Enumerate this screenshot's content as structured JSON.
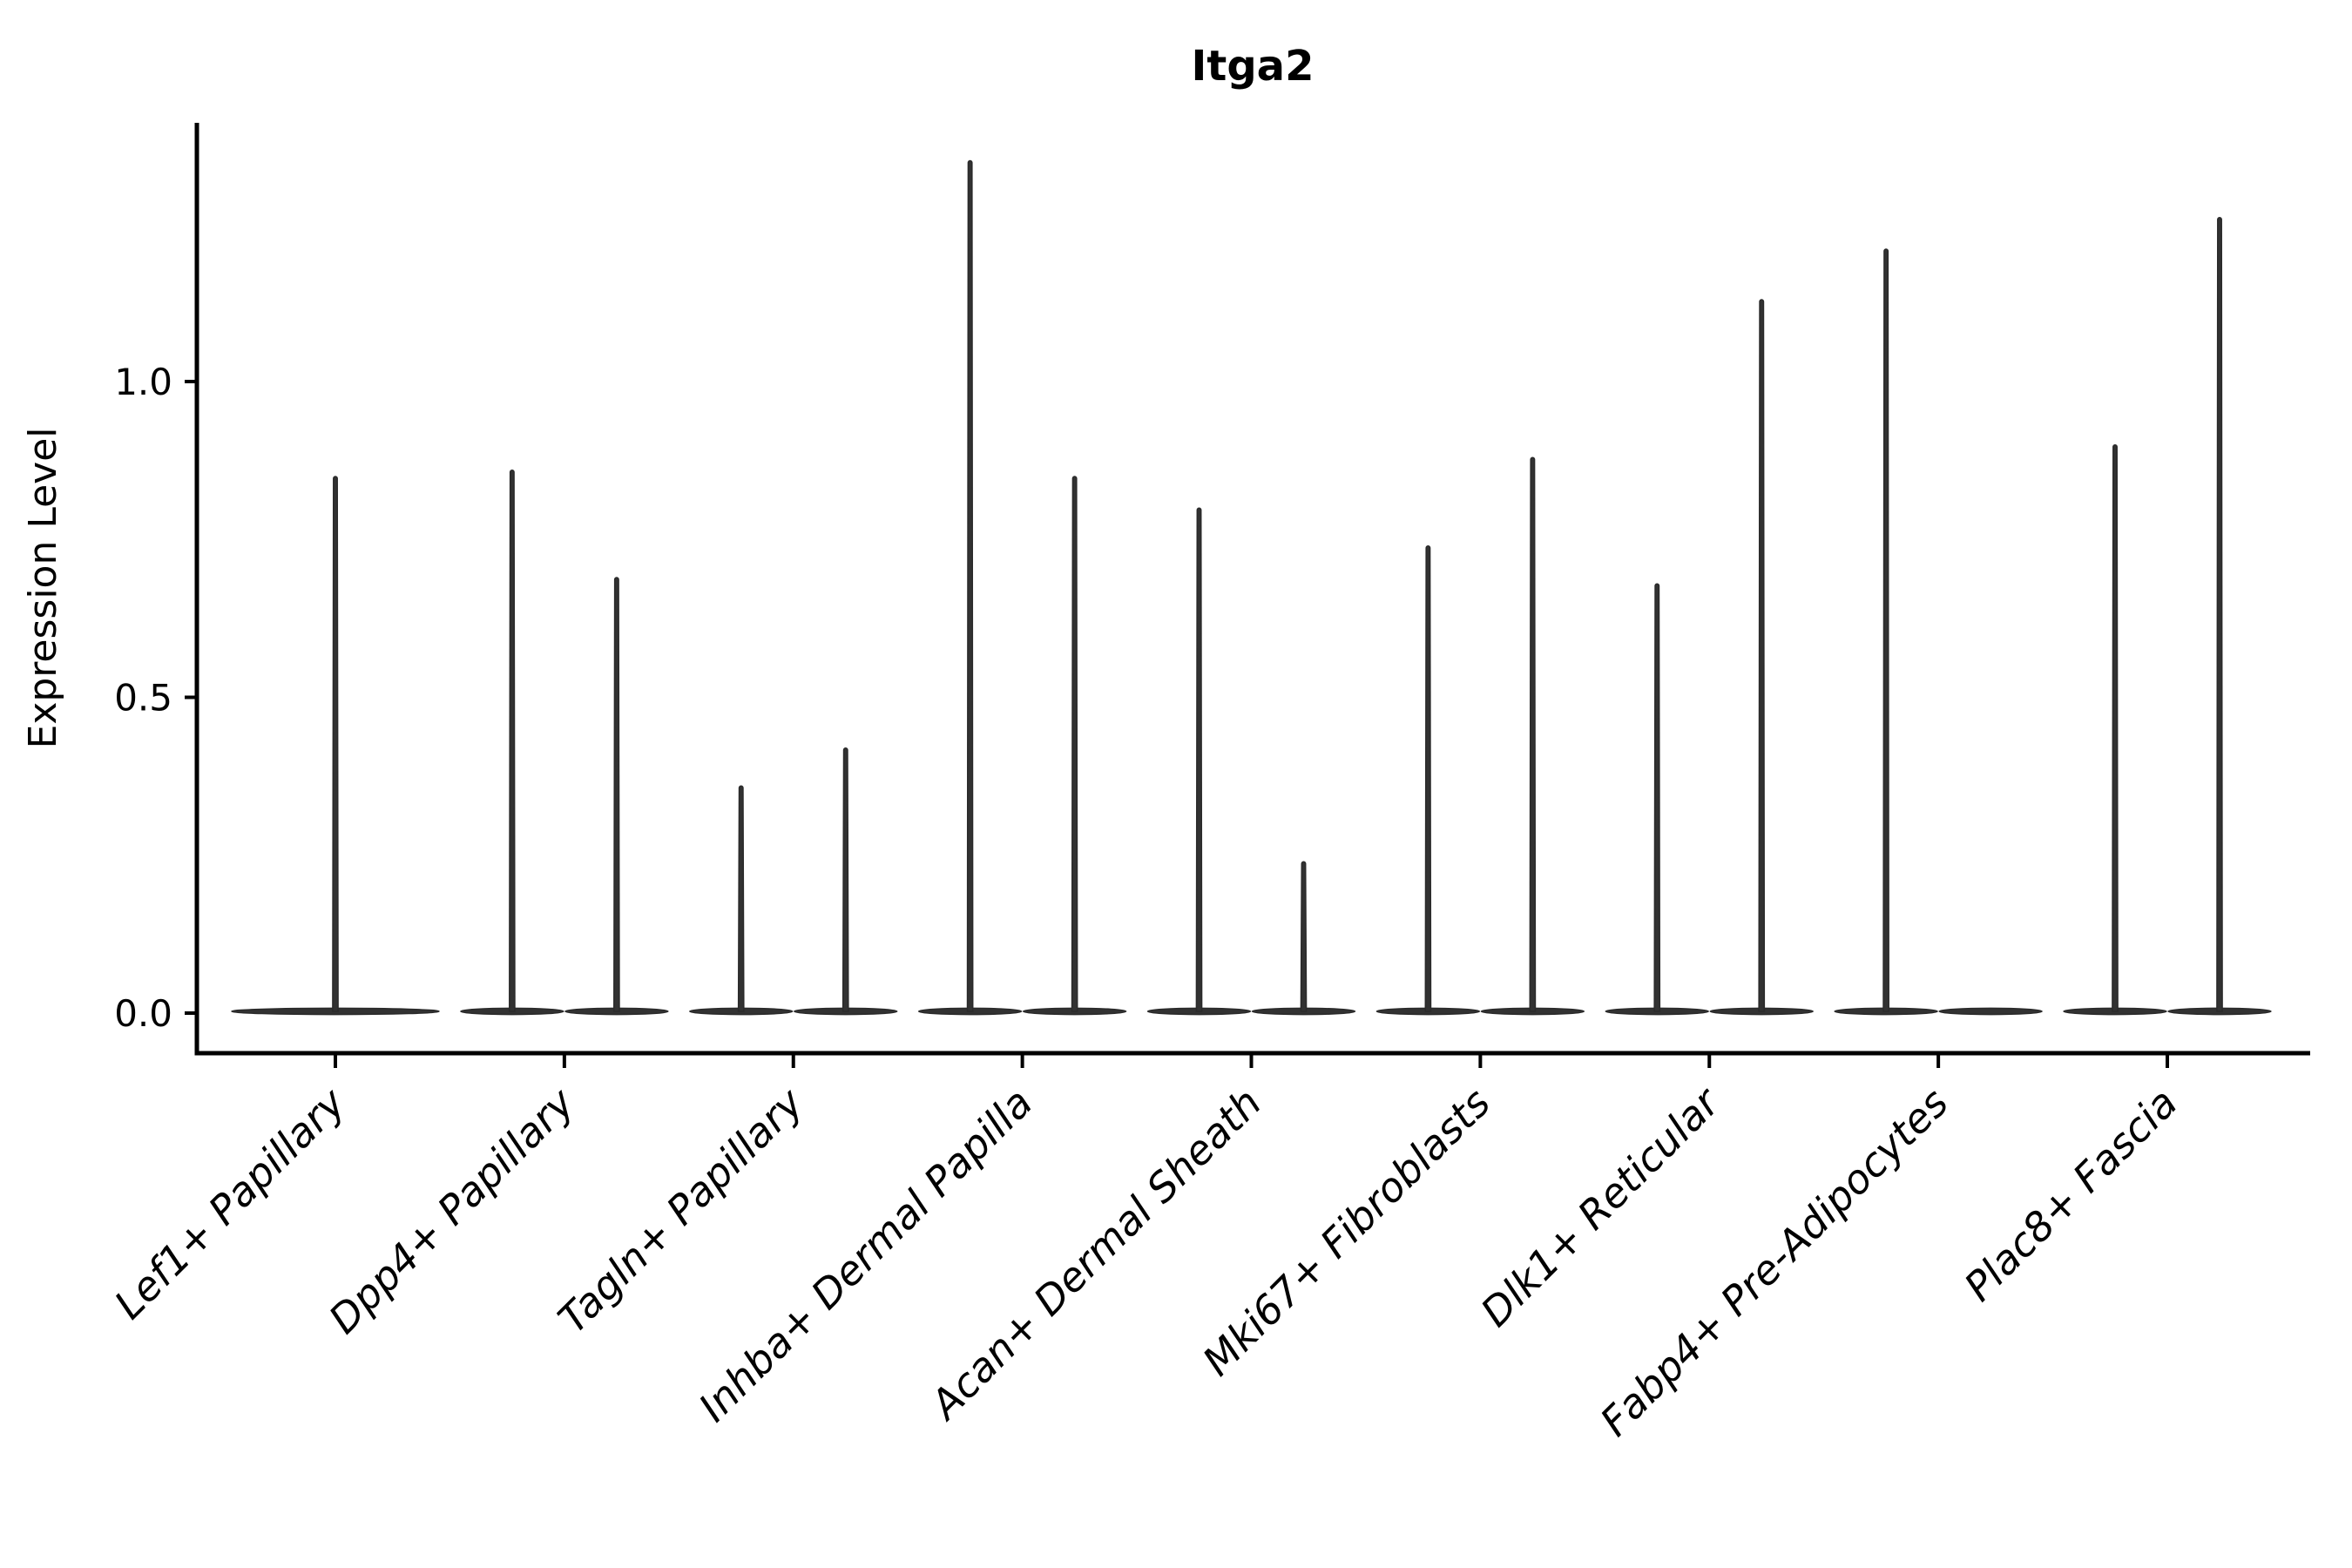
{
  "chart_data": {
    "type": "violin",
    "title": "Itga2",
    "xlabel": "",
    "ylabel": "Expression Level",
    "yticks": [
      0.0,
      0.5,
      1.0
    ],
    "ytick_labels": [
      "0.0",
      "0.5",
      "1.0"
    ],
    "ylim": [
      -0.06,
      1.41
    ],
    "grid": false,
    "legend": "none",
    "violin_color": "#323232",
    "axis_color": "#000000",
    "description": "Single-cell expression of Itga2 per fibroblast subtype; violins are extremely thin spikes because most cells have zero expression (wide flat base at 0, narrow spike up to the maximum expressing cell).",
    "categories": [
      "Lef1+ Papillary",
      "Dpp4+ Papillary",
      "Tagln+ Papillary",
      "Inhba+ Dermal Papilla",
      "Acan+ Dermal Sheath",
      "Mki67+ Fibroblasts",
      "Dlk1+ Reticular",
      "Fabp4+ Pre-Adipocytes",
      "Plac8+ Fascia"
    ],
    "groups": [
      {
        "label": "Lef1+ Papillary",
        "violins": [
          {
            "slot": "full",
            "baseline_value": 0.0,
            "max_expression": 0.85
          }
        ]
      },
      {
        "label": "Dpp4+ Papillary",
        "violins": [
          {
            "slot": "left",
            "baseline_value": 0.0,
            "max_expression": 0.86
          },
          {
            "slot": "right",
            "baseline_value": 0.0,
            "max_expression": 0.69
          }
        ]
      },
      {
        "label": "Tagln+ Papillary",
        "violins": [
          {
            "slot": "left",
            "baseline_value": 0.0,
            "max_expression": 0.36
          },
          {
            "slot": "right",
            "baseline_value": 0.0,
            "max_expression": 0.42
          }
        ]
      },
      {
        "label": "Inhba+ Dermal Papilla",
        "violins": [
          {
            "slot": "left",
            "baseline_value": 0.0,
            "max_expression": 1.35
          },
          {
            "slot": "right",
            "baseline_value": 0.0,
            "max_expression": 0.85
          }
        ]
      },
      {
        "label": "Acan+ Dermal Sheath",
        "violins": [
          {
            "slot": "left",
            "baseline_value": 0.0,
            "max_expression": 0.8
          },
          {
            "slot": "right",
            "baseline_value": 0.0,
            "max_expression": 0.24
          }
        ]
      },
      {
        "label": "Mki67+ Fibroblasts",
        "violins": [
          {
            "slot": "left",
            "baseline_value": 0.0,
            "max_expression": 0.74
          },
          {
            "slot": "right",
            "baseline_value": 0.0,
            "max_expression": 0.88
          }
        ]
      },
      {
        "label": "Dlk1+ Reticular",
        "violins": [
          {
            "slot": "left",
            "baseline_value": 0.0,
            "max_expression": 0.68
          },
          {
            "slot": "right",
            "baseline_value": 0.0,
            "max_expression": 1.13
          }
        ]
      },
      {
        "label": "Fabp4+ Pre-Adipocytes",
        "violins": [
          {
            "slot": "left",
            "baseline_value": 0.0,
            "max_expression": 1.21
          },
          {
            "slot": "right",
            "baseline_value": 0.0,
            "max_expression": 0.0
          }
        ]
      },
      {
        "label": "Plac8+ Fascia",
        "violins": [
          {
            "slot": "left",
            "baseline_value": 0.0,
            "max_expression": 0.9
          },
          {
            "slot": "right",
            "baseline_value": 0.0,
            "max_expression": 1.26
          }
        ]
      }
    ]
  }
}
